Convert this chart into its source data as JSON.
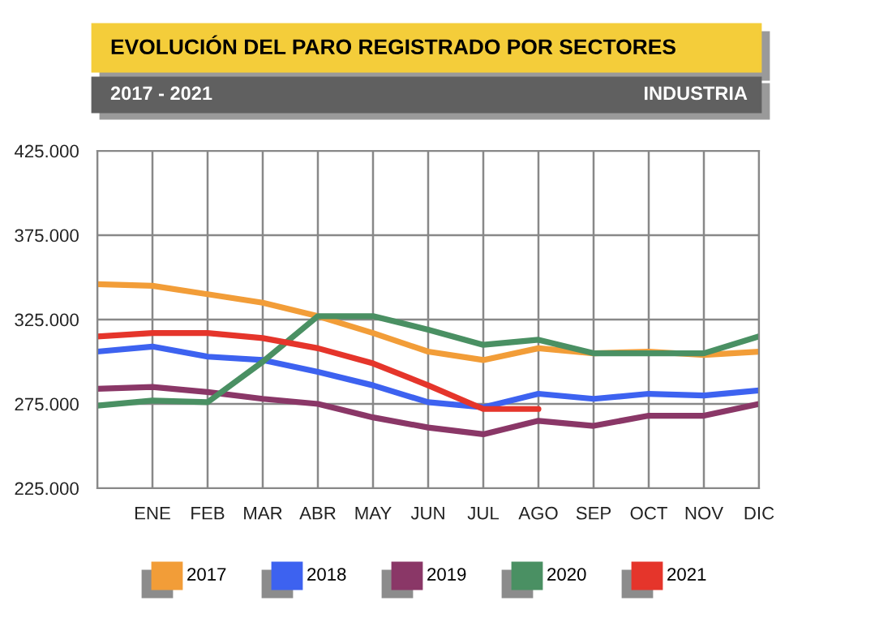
{
  "chart_data": {
    "type": "line",
    "title": "EVOLUCIÓN DEL PARO REGISTRADO POR SECTORES",
    "subtitle": "2017 - 2021",
    "annotations": [
      "INDUSTRIA"
    ],
    "categories": [
      null,
      "ENE",
      "FEB",
      "MAR",
      "ABR",
      "MAY",
      "JUN",
      "JUL",
      "AGO",
      "SEP",
      "OCT",
      "NOV",
      "DIC"
    ],
    "series": [
      {
        "name": "2017",
        "color": "#f29d38",
        "values": [
          346000,
          345000,
          340000,
          335000,
          327000,
          317000,
          306000,
          301000,
          308000,
          305000,
          306000,
          304000,
          306000
        ]
      },
      {
        "name": "2018",
        "color": "#3d62f0",
        "values": [
          306000,
          309000,
          303000,
          301000,
          294000,
          286000,
          276000,
          273000,
          281000,
          278000,
          281000,
          280000,
          283000
        ]
      },
      {
        "name": "2019",
        "color": "#8a3767",
        "values": [
          284000,
          285000,
          282000,
          278000,
          275000,
          267000,
          261000,
          257000,
          265000,
          262000,
          268000,
          268000,
          275000
        ]
      },
      {
        "name": "2020",
        "color": "#4a9063",
        "values": [
          274000,
          277000,
          276000,
          300000,
          327000,
          327000,
          319000,
          310000,
          313000,
          305000,
          305000,
          305000,
          315000
        ]
      },
      {
        "name": "2021",
        "color": "#e5352b",
        "values": [
          315000,
          317000,
          317000,
          314000,
          308000,
          299000,
          286000,
          272000,
          272000,
          null,
          null,
          null,
          null
        ]
      }
    ],
    "ylim": [
      225000,
      425000
    ],
    "yticks": [
      {
        "value": 225000,
        "label": "225.000"
      },
      {
        "value": 275000,
        "label": "275.000"
      },
      {
        "value": 325000,
        "label": "325.000"
      },
      {
        "value": 375000,
        "label": "375.000"
      },
      {
        "value": 425000,
        "label": "425.000"
      }
    ],
    "grid": true,
    "legend": "bottom",
    "marker": "none",
    "line_style": "solid"
  }
}
